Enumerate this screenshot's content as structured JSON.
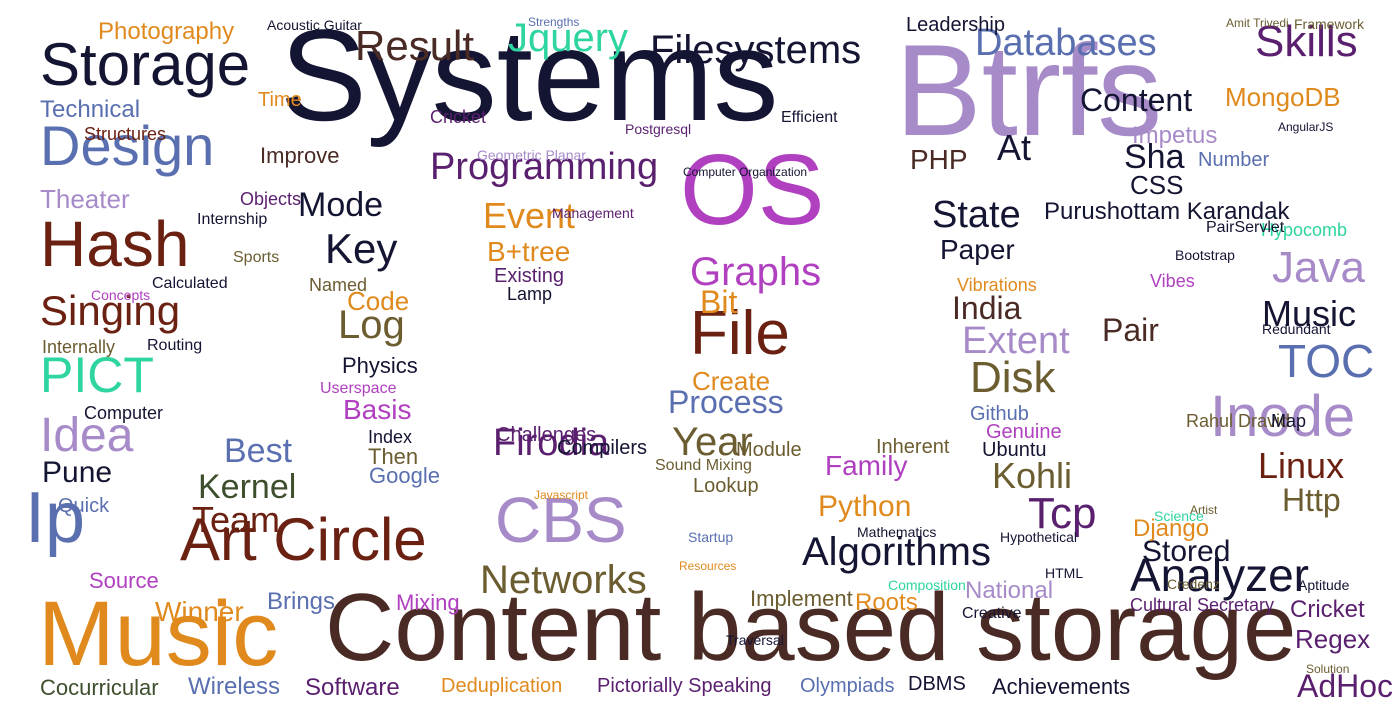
{
  "palette": {
    "navy": "#1a1a3e",
    "dark_navy": "#141433",
    "brown": "#5c3317",
    "dark_brown": "#4a2a24",
    "maroon": "#6b2111",
    "lavender": "#a78bc9",
    "purple": "#5a1f6e",
    "magenta": "#b040c0",
    "blue": "#5a6fb0",
    "teal": "#2ed5a0",
    "orange": "#e08a1e",
    "olive": "#6b5d30",
    "dark_green": "#3d4f2c",
    "gray": "#444444"
  },
  "words": [
    {
      "text": "Systems",
      "color": "#141433"
    },
    {
      "text": "Btrfs",
      "color": "#a78bc9"
    },
    {
      "text": "Music",
      "color": "#e08a1e"
    },
    {
      "text": "Content based storage",
      "color": "#4a2a24"
    },
    {
      "text": "OS",
      "color": "#b040c0"
    },
    {
      "text": "Storage",
      "color": "#141433"
    },
    {
      "text": "Hash",
      "color": "#6b2111"
    },
    {
      "text": "Design",
      "color": "#5a6fb0"
    },
    {
      "text": "Art Circle",
      "color": "#6b2111"
    },
    {
      "text": "Ip",
      "color": "#5a6fb0"
    },
    {
      "text": "CBS",
      "color": "#a78bc9"
    },
    {
      "text": "File",
      "color": "#6b2111"
    },
    {
      "text": "Inode",
      "color": "#a78bc9"
    },
    {
      "text": "Idea",
      "color": "#a78bc9"
    },
    {
      "text": "Singing",
      "color": "#6b2111"
    },
    {
      "text": "PICT",
      "color": "#2ed5a0"
    },
    {
      "text": "Result",
      "color": "#4a2a24"
    },
    {
      "text": "Filesystems",
      "color": "#141433"
    },
    {
      "text": "Databases",
      "color": "#5a6fb0"
    },
    {
      "text": "Skills",
      "color": "#5a1f6e"
    },
    {
      "text": "Content",
      "color": "#141433"
    },
    {
      "text": "MongoDB",
      "color": "#e08a1e"
    },
    {
      "text": "Jquery",
      "color": "#2ed5a0"
    },
    {
      "text": "Photography",
      "color": "#e08a1e"
    },
    {
      "text": "Technical",
      "color": "#5a6fb0"
    },
    {
      "text": "Programming",
      "color": "#5a1f6e"
    },
    {
      "text": "Graphs",
      "color": "#b040c0"
    },
    {
      "text": "Key",
      "color": "#141433"
    },
    {
      "text": "Log",
      "color": "#6b5d30"
    },
    {
      "text": "Mode",
      "color": "#141433"
    },
    {
      "text": "Event",
      "color": "#e08a1e"
    },
    {
      "text": "State",
      "color": "#141433"
    },
    {
      "text": "Java",
      "color": "#a78bc9"
    },
    {
      "text": "TOC",
      "color": "#5a6fb0"
    },
    {
      "text": "Music",
      "color": "#141433"
    },
    {
      "text": "Linux",
      "color": "#6b2111"
    },
    {
      "text": "Http",
      "color": "#6b5d30"
    },
    {
      "text": "Tcp",
      "color": "#5a1f6e"
    },
    {
      "text": "Kohli",
      "color": "#6b5d30"
    },
    {
      "text": "Algorithms",
      "color": "#141433"
    },
    {
      "text": "Analyzer",
      "color": "#141433"
    },
    {
      "text": "Networks",
      "color": "#6b5d30"
    },
    {
      "text": "Firodia",
      "color": "#5a1f6e"
    },
    {
      "text": "Year",
      "color": "#6b5d30"
    },
    {
      "text": "Process",
      "color": "#5a6fb0"
    },
    {
      "text": "Create",
      "color": "#e08a1e"
    },
    {
      "text": "Disk",
      "color": "#6b5d30"
    },
    {
      "text": "Extent",
      "color": "#a78bc9"
    },
    {
      "text": "India",
      "color": "#4a2a24"
    },
    {
      "text": "Pair",
      "color": "#4a2a24"
    },
    {
      "text": "Paper",
      "color": "#141433"
    },
    {
      "text": "Purushottam Karandak",
      "color": "#141433"
    },
    {
      "text": "Sha",
      "color": "#141433"
    },
    {
      "text": "At",
      "color": "#141433"
    },
    {
      "text": "CSS",
      "color": "#141433"
    },
    {
      "text": "PHP",
      "color": "#4a2a24"
    },
    {
      "text": "Code",
      "color": "#e08a1e"
    },
    {
      "text": "Bit",
      "color": "#e08a1e"
    },
    {
      "text": "Best",
      "color": "#5a6fb0"
    },
    {
      "text": "Kernel",
      "color": "#3d4f2c"
    },
    {
      "text": "Team",
      "color": "#6b2111"
    },
    {
      "text": "Pune",
      "color": "#141433"
    },
    {
      "text": "Basis",
      "color": "#b040c0"
    },
    {
      "text": "Physics",
      "color": "#141433"
    },
    {
      "text": "Python",
      "color": "#e08a1e"
    },
    {
      "text": "Family",
      "color": "#b040c0"
    },
    {
      "text": "Stored",
      "color": "#141433"
    },
    {
      "text": "Django",
      "color": "#e08a1e"
    },
    {
      "text": "Roots",
      "color": "#e08a1e"
    },
    {
      "text": "Regex",
      "color": "#5a1f6e"
    },
    {
      "text": "Cricket",
      "color": "#5a1f6e"
    },
    {
      "text": "Winner",
      "color": "#e08a1e"
    },
    {
      "text": "Brings",
      "color": "#5a6fb0"
    },
    {
      "text": "Source",
      "color": "#b040c0"
    },
    {
      "text": "Software",
      "color": "#5a1f6e"
    },
    {
      "text": "Wireless",
      "color": "#5a6fb0"
    },
    {
      "text": "Cocurricular",
      "color": "#3d4f2c"
    },
    {
      "text": "Deduplication",
      "color": "#e08a1e"
    },
    {
      "text": "Pictorially Speaking",
      "color": "#5a1f6e"
    },
    {
      "text": "Olympiads",
      "color": "#5a6fb0"
    },
    {
      "text": "DBMS",
      "color": "#141433"
    },
    {
      "text": "Achievements",
      "color": "#141433"
    },
    {
      "text": "AdHoc",
      "color": "#5a1f6e"
    },
    {
      "text": "Implement",
      "color": "#6b5d30"
    },
    {
      "text": "Mixing",
      "color": "#b040c0"
    },
    {
      "text": "National",
      "color": "#a78bc9"
    },
    {
      "text": "Cultural Secretary",
      "color": "#5a1f6e"
    },
    {
      "text": "Leadership",
      "color": "#141433"
    },
    {
      "text": "Impetus",
      "color": "#a78bc9"
    },
    {
      "text": "Structures",
      "color": "#6b2111"
    },
    {
      "text": "Time",
      "color": "#e08a1e"
    },
    {
      "text": "Cricket",
      "color": "#5a1f6e"
    },
    {
      "text": "Postgresql",
      "color": "#5a1f6e"
    },
    {
      "text": "Efficient",
      "color": "#141433"
    },
    {
      "text": "Geometric Planar",
      "color": "#a78bc9"
    },
    {
      "text": "Improve",
      "color": "#4a2a24"
    },
    {
      "text": "Objects",
      "color": "#5a1f6e"
    },
    {
      "text": "Theater",
      "color": "#a78bc9"
    },
    {
      "text": "Hypocomb",
      "color": "#2ed5a0"
    },
    {
      "text": "Bootstrap",
      "color": "#141433"
    },
    {
      "text": "PairServlet",
      "color": "#141433"
    },
    {
      "text": "Lamp",
      "color": "#141433"
    },
    {
      "text": "Existing",
      "color": "#5a1f6e"
    },
    {
      "text": "B+tree",
      "color": "#e08a1e"
    },
    {
      "text": "Computer",
      "color": "#141433"
    },
    {
      "text": "Internship",
      "color": "#141433"
    },
    {
      "text": "Sports",
      "color": "#6b5d30"
    },
    {
      "text": "Routing",
      "color": "#141433"
    },
    {
      "text": "Concepts",
      "color": "#b040c0"
    },
    {
      "text": "Internally",
      "color": "#6b5d30"
    },
    {
      "text": "Calculated",
      "color": "#141433"
    },
    {
      "text": "Named",
      "color": "#6b5d30"
    },
    {
      "text": "Userspace",
      "color": "#b040c0"
    },
    {
      "text": "Challenges",
      "color": "#5a1f6e"
    },
    {
      "text": "Compilers",
      "color": "#141433"
    },
    {
      "text": "Index",
      "color": "#141433"
    },
    {
      "text": "Then",
      "color": "#6b5d30"
    },
    {
      "text": "Google",
      "color": "#5a6fb0"
    },
    {
      "text": "Module",
      "color": "#6b5d30"
    },
    {
      "text": "Sound Mixing",
      "color": "#6b5d30"
    },
    {
      "text": "Lookup",
      "color": "#6b5d30"
    },
    {
      "text": "Inherent",
      "color": "#6b5d30"
    },
    {
      "text": "Genuine",
      "color": "#b040c0"
    },
    {
      "text": "Ubuntu",
      "color": "#141433"
    },
    {
      "text": "Github",
      "color": "#5a6fb0"
    },
    {
      "text": "Vibrations",
      "color": "#e08a1e"
    },
    {
      "text": "Vibes",
      "color": "#b040c0"
    },
    {
      "text": "Rahul Dravid",
      "color": "#6b5d30"
    },
    {
      "text": "Map",
      "color": "#141433"
    },
    {
      "text": "Credenz",
      "color": "#6b5d30"
    },
    {
      "text": "Hypothetical",
      "color": "#141433"
    },
    {
      "text": "Mathematics",
      "color": "#141433"
    },
    {
      "text": "Creative",
      "color": "#141433"
    },
    {
      "text": "Aptitude",
      "color": "#141433"
    },
    {
      "text": "Redundant",
      "color": "#141433"
    },
    {
      "text": "AngularJS",
      "color": "#141433"
    },
    {
      "text": "Strengths",
      "color": "#5a6fb0"
    },
    {
      "text": "Acoustic Guitar",
      "color": "#141433"
    },
    {
      "text": "Framework",
      "color": "#6b5d30"
    },
    {
      "text": "Amit Trivedi",
      "color": "#6b5d30"
    },
    {
      "text": "Javascript",
      "color": "#e08a1e"
    },
    {
      "text": "HTML",
      "color": "#141433"
    },
    {
      "text": "Quick",
      "color": "#5a6fb0"
    },
    {
      "text": "Solution",
      "color": "#6b5d30"
    },
    {
      "text": "Traversal",
      "color": "#141433"
    },
    {
      "text": "Resources",
      "color": "#e08a1e"
    },
    {
      "text": "Management",
      "color": "#5a1f6e"
    },
    {
      "text": "Computer Organization",
      "color": "#141433"
    },
    {
      "text": "Number",
      "color": "#5a6fb0"
    },
    {
      "text": "Artist",
      "color": "#6b5d30"
    },
    {
      "text": "Science",
      "color": "#2ed5a0"
    },
    {
      "text": "Composition",
      "color": "#2ed5a0"
    },
    {
      "text": "Startup",
      "color": "#5a6fb0"
    }
  ]
}
